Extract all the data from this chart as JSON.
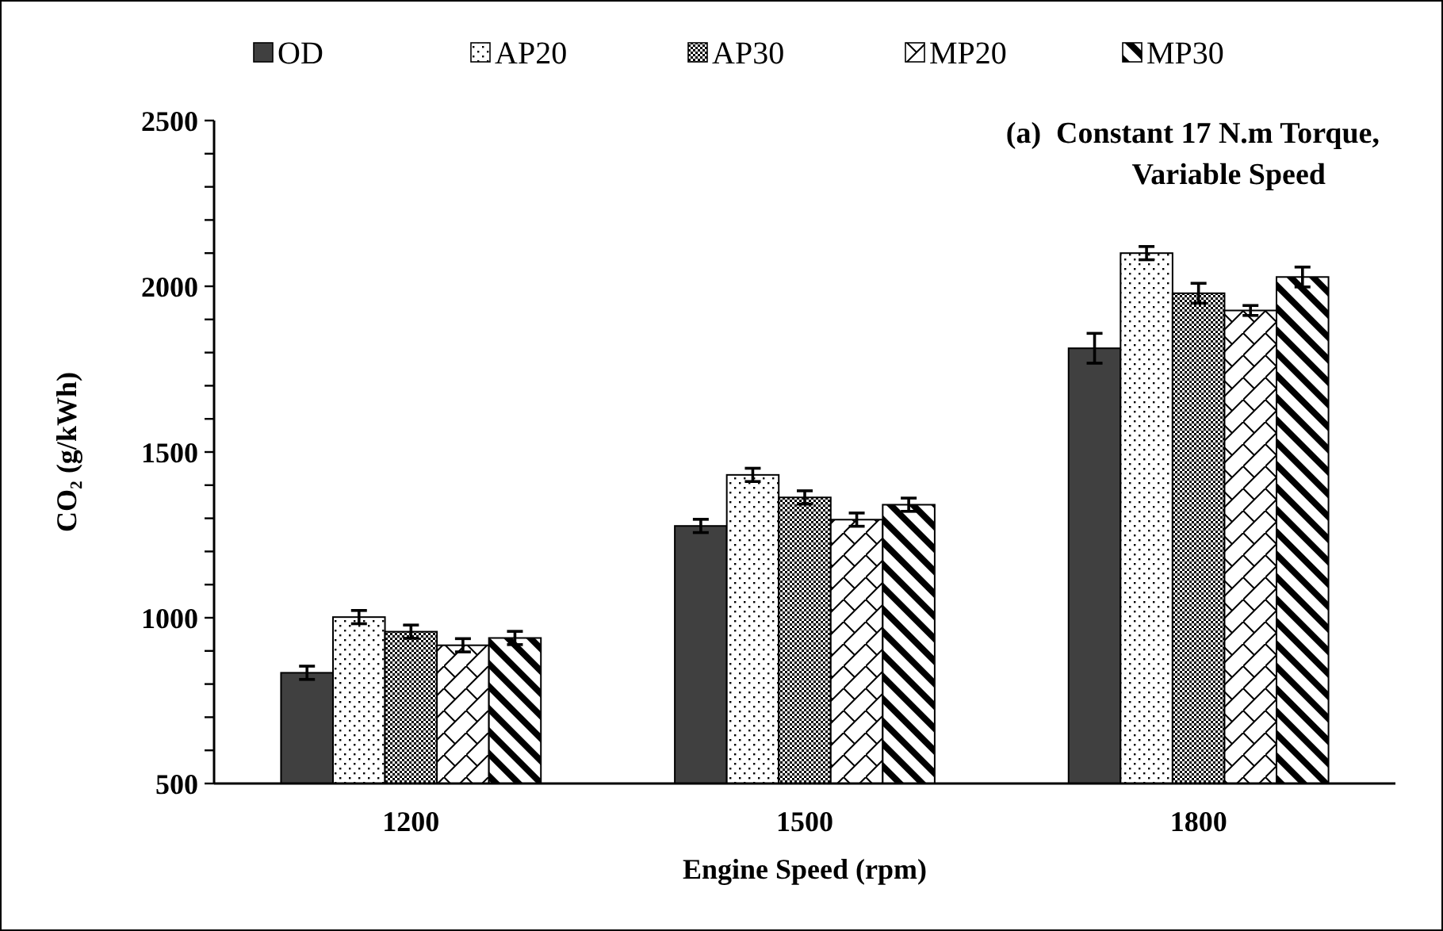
{
  "chart_data": {
    "type": "bar",
    "title": "(a)  Constant 17 N.m Torque, Variable Speed",
    "xlabel": "Engine Speed (rpm)",
    "ylabel": "CO₂ (g/kWh)",
    "categories": [
      "1200",
      "1500",
      "1800"
    ],
    "series": [
      {
        "name": "OD",
        "color": "#404040",
        "values": [
          834,
          1277,
          1813
        ],
        "errors": [
          20,
          20,
          45
        ]
      },
      {
        "name": "AP20",
        "color": "#000000",
        "values": [
          1002,
          1431,
          2100
        ],
        "errors": [
          20,
          20,
          20
        ]
      },
      {
        "name": "AP30",
        "color": "#000000",
        "values": [
          958,
          1363,
          1979
        ],
        "errors": [
          20,
          20,
          30
        ]
      },
      {
        "name": "MP20",
        "color": "#000000",
        "values": [
          917,
          1296,
          1927
        ],
        "errors": [
          20,
          20,
          15
        ]
      },
      {
        "name": "MP30",
        "color": "#000000",
        "values": [
          939,
          1341,
          2028
        ],
        "errors": [
          20,
          20,
          30
        ]
      }
    ],
    "ylim": [
      500,
      2500
    ],
    "yticks": [
      500,
      {
        "value": 600,
        "label": null
      },
      {
        "value": 700,
        "label": null
      },
      {
        "value": 800,
        "label": null
      },
      {
        "value": 900,
        "label": null
      },
      1000,
      {
        "value": 1100,
        "label": null
      },
      {
        "value": 1200,
        "label": null
      },
      {
        "value": 1300,
        "label": null
      },
      {
        "value": 1400,
        "label": null
      },
      1500,
      {
        "value": 1600,
        "label": null
      },
      {
        "value": 1700,
        "label": null
      },
      {
        "value": 1800,
        "label": null
      },
      {
        "value": 1900,
        "label": null
      },
      2000,
      {
        "value": 2100,
        "label": null
      },
      {
        "value": 2200,
        "label": null
      },
      {
        "value": 2300,
        "label": null
      },
      {
        "value": 2400,
        "label": null
      },
      2500
    ],
    "grid": false,
    "legend": "top"
  }
}
